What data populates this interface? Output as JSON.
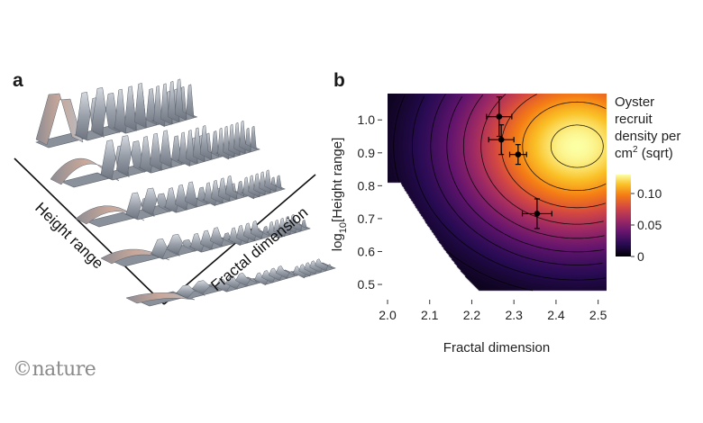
{
  "panels": {
    "a": "a",
    "b": "b"
  },
  "panel_a": {
    "axis_height_label": "Height range",
    "axis_fractal_label": "Fractal dimension"
  },
  "chart_data": {
    "type": "heatmap",
    "xlabel": "Fractal dimension",
    "ylabel_prefix": "log",
    "ylabel_subscript": "10",
    "ylabel_suffix": "[Height range]",
    "xlim": [
      2.0,
      2.52
    ],
    "ylim": [
      0.47,
      1.08
    ],
    "xticks": [
      "2.0",
      "2.1",
      "2.2",
      "2.3",
      "2.4",
      "2.5"
    ],
    "yticks": [
      "0.5",
      "0.6",
      "0.7",
      "0.8",
      "0.9",
      "1.0"
    ],
    "colorbar": {
      "title_lines": [
        "Oyster",
        "recruit",
        "density per",
        "cm"
      ],
      "title_superscript": "2",
      "title_unit": " (sqrt)",
      "min": 0,
      "max": 0.13,
      "ticks": [
        "0.10",
        "0.05",
        "0"
      ]
    },
    "points": [
      {
        "x": 2.265,
        "y": 1.01,
        "xerr": 0.03,
        "yerr": 0.06
      },
      {
        "x": 2.27,
        "y": 0.94,
        "xerr": 0.03,
        "yerr": 0.045
      },
      {
        "x": 2.31,
        "y": 0.895,
        "xerr": 0.02,
        "yerr": 0.03
      },
      {
        "x": 2.355,
        "y": 0.715,
        "xerr": 0.035,
        "yerr": 0.045
      }
    ]
  },
  "credit": "©nature",
  "colors": {
    "point": "#000000",
    "contour": "#000000"
  }
}
